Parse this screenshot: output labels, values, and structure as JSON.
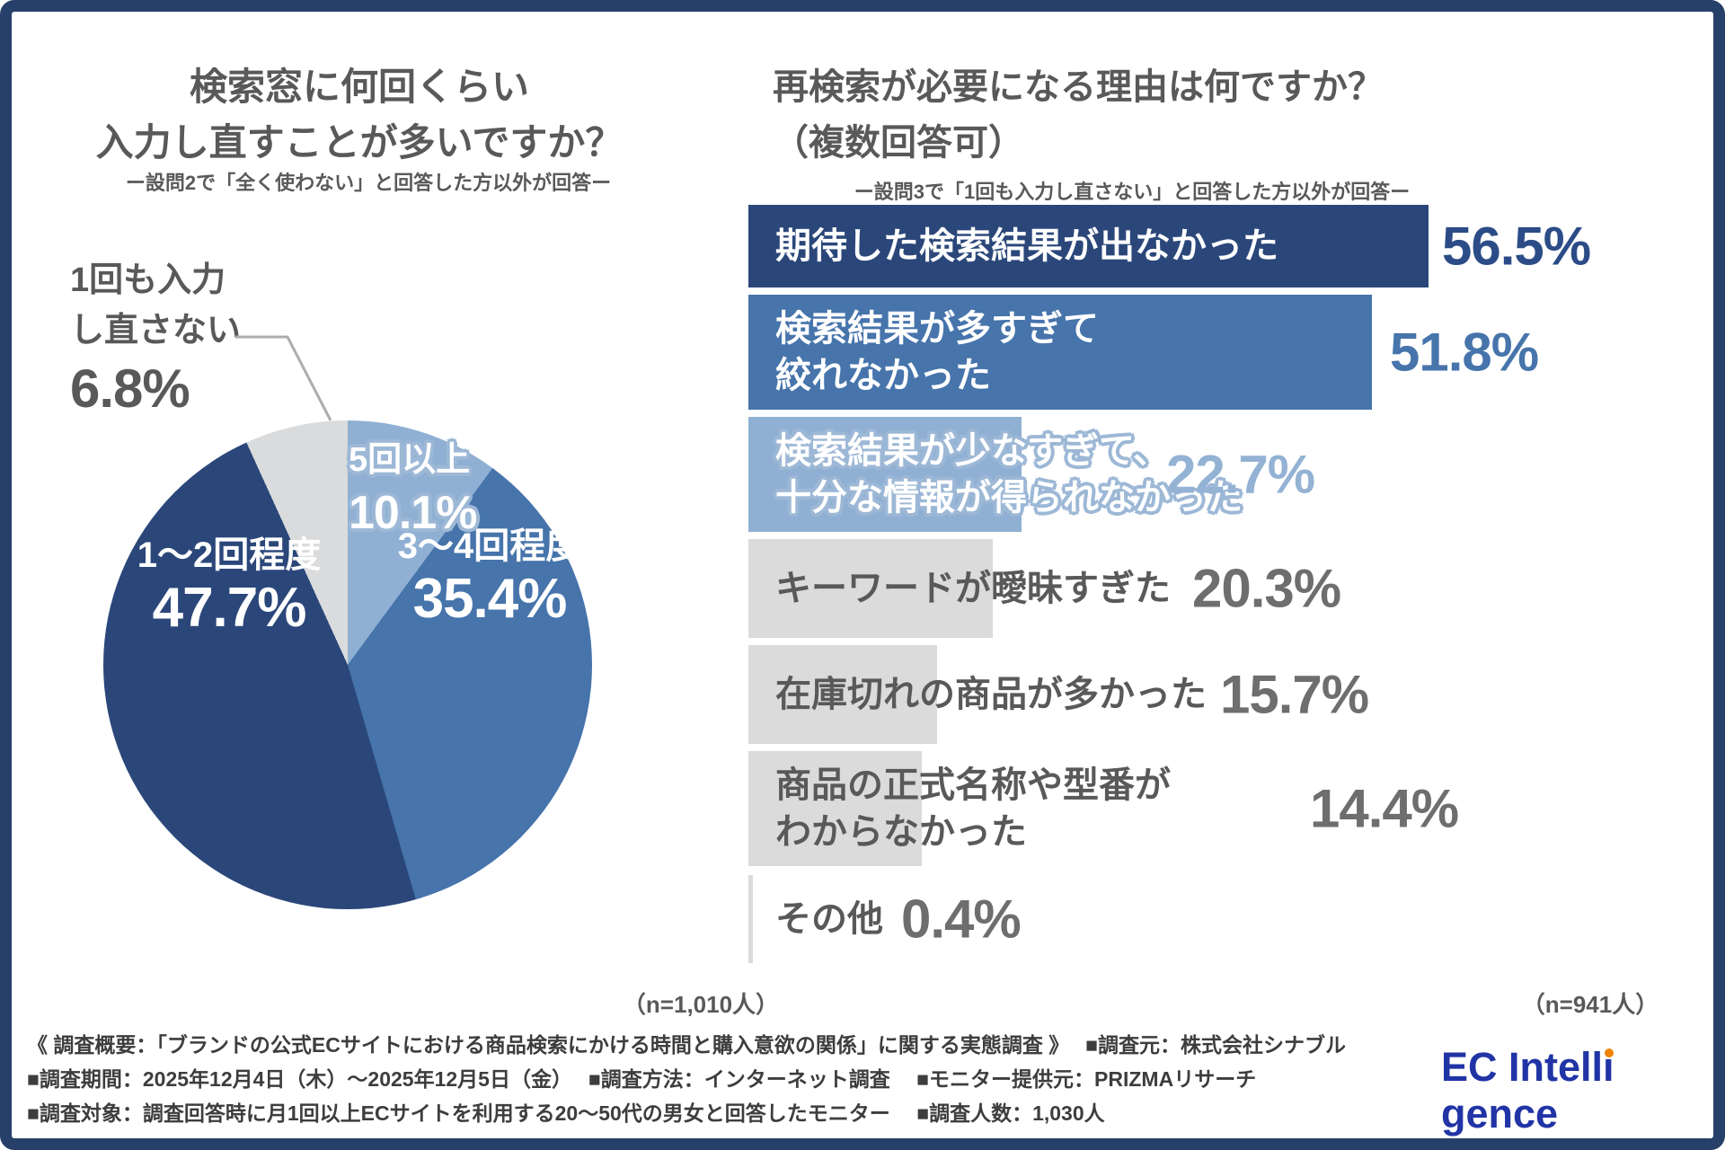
{
  "left_panel": {
    "title": [
      "検索窓に何回くらい",
      "入力し直すことが多いですか？"
    ],
    "subtitle": "ー設問2で「全く使わない」と回答した方以外が回答ー",
    "n_label": "（n=1,010人）",
    "slices": {
      "s12": {
        "label": "1〜2回程度",
        "value": "47.7%"
      },
      "s34": {
        "label": "3〜4回程度",
        "value": "35.4%"
      },
      "s5plus": {
        "label": "5回以上",
        "value": "10.1%"
      },
      "none": {
        "line1": "1回も入力",
        "line2": "し直さない",
        "value": "6.8%"
      }
    }
  },
  "right_panel": {
    "title": [
      "再検索が必要になる理由は何ですか？",
      "（複数回答可）"
    ],
    "subtitle": "ー設問3で「1回も入力し直さない」と回答した方以外が回答ー",
    "n_label": "（n=941人）",
    "bars": [
      {
        "line1": "期待した検索結果が出なかった",
        "value": "56.5%",
        "pct": 56.5
      },
      {
        "line1": "検索結果が多すぎて",
        "line2": "絞れなかった",
        "value": "51.8%",
        "pct": 51.8
      },
      {
        "line1": "検索結果が少なすぎて、",
        "line2": "十分な情報が得られなかった",
        "value": "22.7%",
        "pct": 22.7
      },
      {
        "line1": "キーワードが曖昧すぎた",
        "value": "20.3%",
        "pct": 20.3
      },
      {
        "line1": "在庫切れの商品が多かった",
        "value": "15.7%",
        "pct": 15.7
      },
      {
        "line1": "商品の正式名称や型番が",
        "line2": "わからなかった",
        "value": "14.4%",
        "pct": 14.4
      },
      {
        "line1": "その他",
        "value": "0.4%",
        "pct": 0.4
      }
    ]
  },
  "footer": {
    "lines": [
      "《 調査概要：「ブランドの公式ECサイトにおける商品検索にかける時間と購入意欲の関係」に関する実態調査 》　 ■調査元：株式会社シナブル",
      "■調査期間：2025年12月4日（木）〜2025年12月5日（金）　 ■調査方法：インターネット調査　 ■モニター提供元：PRIZMAリサーチ",
      "■調査対象：調査回答時に月1回以上ECサイトを利用する20〜50代の男女と回答したモニター　 ■調査人数：1,030人"
    ]
  },
  "logo": {
    "pre": "EC Intell",
    "dotless_i": "ı",
    "post": "gence",
    "color": "#2134A6",
    "dot_color": "#F08300"
  },
  "colors": {
    "frame_navy": "#274069",
    "pie_navy": "#2B477A",
    "pie_blue": "#4674AB",
    "pie_light_blue": "#8FB0D3",
    "pie_gray": "#D9DBDD",
    "bar_gray": "#DBDBDB",
    "text_gray": "#595959"
  },
  "chart_data": [
    {
      "type": "pie",
      "title": "検索窓に何回くらい入力し直すことが多いですか？",
      "subtitle": "ー設問2で「全く使わない」と回答した方以外が回答ー",
      "n": "n=1,010人",
      "start_angle": "top",
      "direction": "clockwise",
      "slices": [
        {
          "label": "5回以上",
          "value": 10.1,
          "color": "#8FB0D3"
        },
        {
          "label": "3〜4回程度",
          "value": 35.4,
          "color": "#4674AB"
        },
        {
          "label": "1〜2回程度",
          "value": 47.7,
          "color": "#2B477A"
        },
        {
          "label": "1回も入力し直さない",
          "value": 6.8,
          "color": "#D9DBDD"
        }
      ]
    },
    {
      "type": "bar",
      "orientation": "horizontal",
      "title": "再検索が必要になる理由は何ですか？（複数回答可）",
      "subtitle": "ー設問3で「1回も入力し直さない」と回答した方以外が回答ー",
      "n": "n=941人",
      "unit": "%",
      "xlim": [
        0,
        60
      ],
      "categories": [
        "期待した検索結果が出なかった",
        "検索結果が多すぎて絞れなかった",
        "検索結果が少なすぎて、十分な情報が得られなかった",
        "キーワードが曖昧すぎた",
        "在庫切れの商品が多かった",
        "商品の正式名称や型番がわからなかった",
        "その他"
      ],
      "values": [
        56.5,
        51.8,
        22.7,
        20.3,
        15.7,
        14.4,
        0.4
      ],
      "bar_colors": [
        "#2B477A",
        "#4674AB",
        "#8FB0D3",
        "#DBDBDB",
        "#DBDBDB",
        "#DBDBDB",
        "#DBDBDB"
      ],
      "label_colors": [
        "#FFFFFF",
        "#FFFFFF",
        "#FFFFFF",
        "#595959",
        "#595959",
        "#595959",
        "#595959"
      ],
      "value_colors": [
        "#2B4C87",
        "#4674AB",
        "#93B2D4",
        "#6E6E6E",
        "#6E6E6E",
        "#6E6E6E",
        "#6E6E6E"
      ]
    }
  ]
}
